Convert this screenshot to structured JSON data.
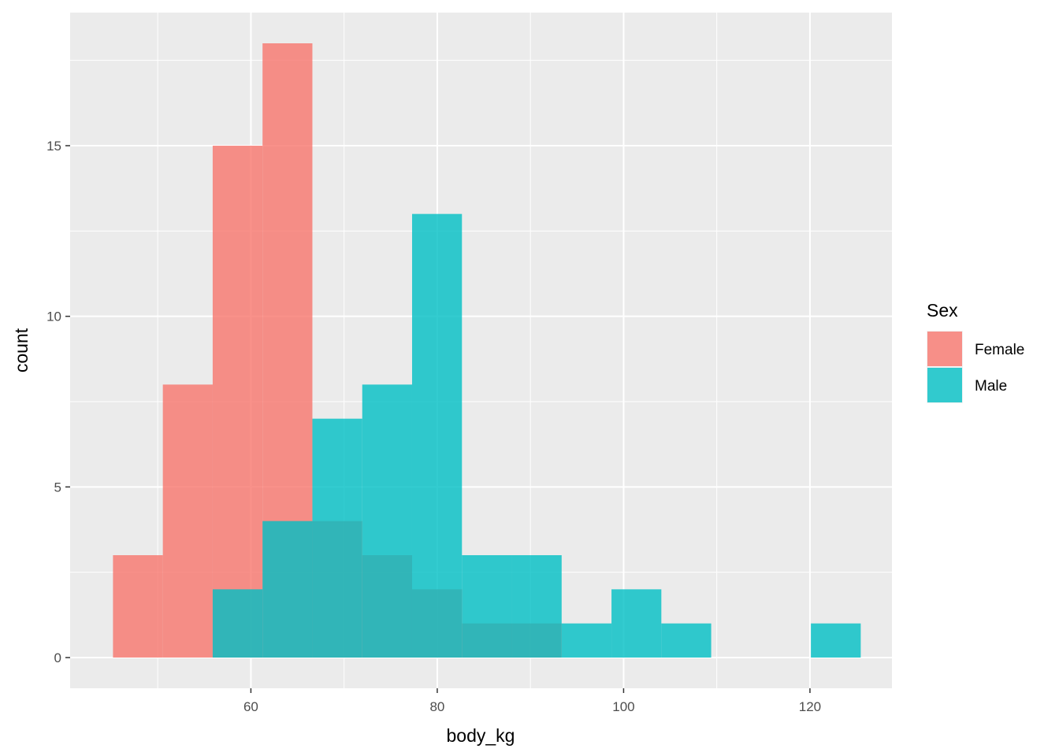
{
  "chart_data": {
    "type": "bar",
    "subtype": "overlapping-histogram",
    "title": "",
    "xlabel": "body_kg",
    "ylabel": "count",
    "xlim": [
      40.6,
      128.8
    ],
    "ylim": [
      -0.9,
      18.9
    ],
    "x_ticks": [
      60,
      80,
      100,
      120
    ],
    "y_ticks": [
      0,
      5,
      10,
      15
    ],
    "grid": true,
    "bin_edges": [
      45.2,
      50.55,
      55.9,
      61.25,
      66.6,
      71.95,
      77.3,
      82.65,
      88.0,
      93.35,
      98.7,
      104.05,
      109.4,
      114.75,
      120.1,
      125.45
    ],
    "series": [
      {
        "name": "Female",
        "color": "#F8766D",
        "values": [
          3,
          8,
          15,
          18,
          4,
          3,
          2,
          1,
          1,
          0,
          0,
          0,
          0,
          0,
          0
        ]
      },
      {
        "name": "Male",
        "color": "#00BFC4",
        "values": [
          0,
          0,
          2,
          4,
          7,
          8,
          13,
          3,
          3,
          1,
          2,
          1,
          0,
          0,
          1
        ]
      }
    ],
    "legend": {
      "title": "Sex",
      "position": "right"
    }
  }
}
